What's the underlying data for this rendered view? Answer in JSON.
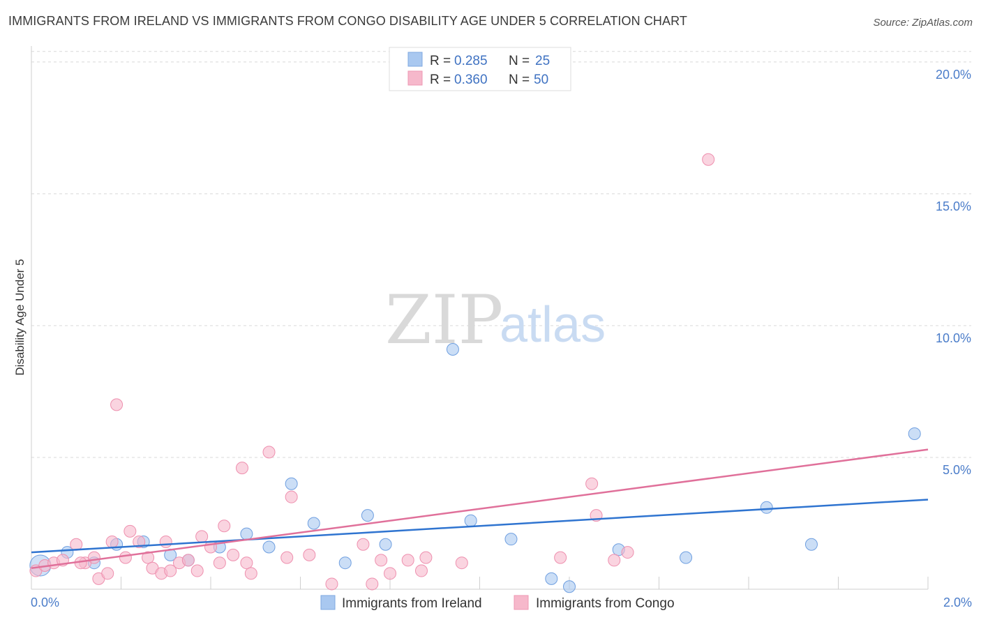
{
  "header": {
    "title": "IMMIGRANTS FROM IRELAND VS IMMIGRANTS FROM CONGO DISABILITY AGE UNDER 5 CORRELATION CHART",
    "source": "Source: ZipAtlas.com"
  },
  "watermark": {
    "zip": "ZIP",
    "atlas": "atlas"
  },
  "legend": {
    "rows": [
      {
        "r_label": "R =",
        "r_value": "0.285",
        "n_label": "N =",
        "n_value": "25",
        "color": "#a9c8f0"
      },
      {
        "r_label": "R =",
        "r_value": "0.360",
        "n_label": "N =",
        "n_value": "50",
        "color": "#f6b8cb"
      }
    ]
  },
  "bottom_legend": {
    "items": [
      {
        "label": "Immigrants from Ireland",
        "color": "#a9c8f0"
      },
      {
        "label": "Immigrants from Congo",
        "color": "#f6b8cb"
      }
    ]
  },
  "chart_data": {
    "type": "scatter",
    "title": "IMMIGRANTS FROM IRELAND VS IMMIGRANTS FROM CONGO DISABILITY AGE UNDER 5 CORRELATION CHART",
    "xlabel": "",
    "ylabel": "Disability Age Under 5",
    "xlim": [
      0,
      2.0
    ],
    "ylim": [
      0,
      20.5
    ],
    "x_tick_labels": [
      "0.0%",
      "2.0%"
    ],
    "y_ticks": [
      5,
      10,
      15,
      20
    ],
    "y_tick_labels": [
      "5.0%",
      "10.0%",
      "15.0%",
      "20.0%"
    ],
    "grid": true,
    "legend_position": "top-center",
    "series": [
      {
        "name": "Immigrants from Ireland",
        "color": "#a9c8f0",
        "stroke": "#6f9fe0",
        "line_color": "#2f74d0",
        "trend": [
          [
            0.0,
            1.4
          ],
          [
            2.0,
            3.4
          ]
        ],
        "points": [
          [
            0.02,
            0.9
          ],
          [
            0.08,
            1.4
          ],
          [
            0.14,
            1.0
          ],
          [
            0.19,
            1.7
          ],
          [
            0.25,
            1.8
          ],
          [
            0.31,
            1.3
          ],
          [
            0.35,
            1.1
          ],
          [
            0.42,
            1.6
          ],
          [
            0.48,
            2.1
          ],
          [
            0.53,
            1.6
          ],
          [
            0.58,
            4.0
          ],
          [
            0.63,
            2.5
          ],
          [
            0.7,
            1.0
          ],
          [
            0.75,
            2.8
          ],
          [
            0.79,
            1.7
          ],
          [
            0.94,
            9.1
          ],
          [
            0.98,
            2.6
          ],
          [
            1.07,
            1.9
          ],
          [
            1.16,
            0.4
          ],
          [
            1.2,
            0.1
          ],
          [
            1.31,
            1.5
          ],
          [
            1.46,
            1.2
          ],
          [
            1.64,
            3.1
          ],
          [
            1.74,
            1.7
          ],
          [
            1.97,
            5.9
          ]
        ]
      },
      {
        "name": "Immigrants from Congo",
        "color": "#f6b8cb",
        "stroke": "#ee8fae",
        "line_color": "#e0709a",
        "trend": [
          [
            0.0,
            0.8
          ],
          [
            2.0,
            5.3
          ]
        ],
        "points": [
          [
            0.01,
            0.7
          ],
          [
            0.03,
            0.9
          ],
          [
            0.05,
            1.0
          ],
          [
            0.07,
            1.1
          ],
          [
            0.1,
            1.7
          ],
          [
            0.12,
            1.0
          ],
          [
            0.14,
            1.2
          ],
          [
            0.15,
            0.4
          ],
          [
            0.17,
            0.6
          ],
          [
            0.18,
            1.8
          ],
          [
            0.19,
            7.0
          ],
          [
            0.21,
            1.2
          ],
          [
            0.22,
            2.2
          ],
          [
            0.24,
            1.8
          ],
          [
            0.26,
            1.2
          ],
          [
            0.27,
            0.8
          ],
          [
            0.29,
            0.6
          ],
          [
            0.3,
            1.8
          ],
          [
            0.31,
            0.7
          ],
          [
            0.33,
            1.0
          ],
          [
            0.35,
            1.1
          ],
          [
            0.37,
            0.7
          ],
          [
            0.38,
            2.0
          ],
          [
            0.4,
            1.6
          ],
          [
            0.43,
            2.4
          ],
          [
            0.45,
            1.3
          ],
          [
            0.47,
            4.6
          ],
          [
            0.48,
            1.0
          ],
          [
            0.49,
            0.6
          ],
          [
            0.53,
            5.2
          ],
          [
            0.57,
            1.2
          ],
          [
            0.58,
            3.5
          ],
          [
            0.62,
            1.3
          ],
          [
            0.67,
            0.2
          ],
          [
            0.74,
            1.7
          ],
          [
            0.76,
            0.2
          ],
          [
            0.78,
            1.1
          ],
          [
            0.8,
            0.6
          ],
          [
            0.84,
            1.1
          ],
          [
            0.87,
            0.7
          ],
          [
            0.88,
            1.2
          ],
          [
            0.96,
            1.0
          ],
          [
            1.18,
            1.2
          ],
          [
            1.25,
            4.0
          ],
          [
            1.26,
            2.8
          ],
          [
            1.3,
            1.1
          ],
          [
            1.33,
            1.4
          ],
          [
            1.51,
            16.3
          ],
          [
            0.11,
            1.0
          ],
          [
            0.42,
            1.0
          ]
        ]
      }
    ]
  }
}
